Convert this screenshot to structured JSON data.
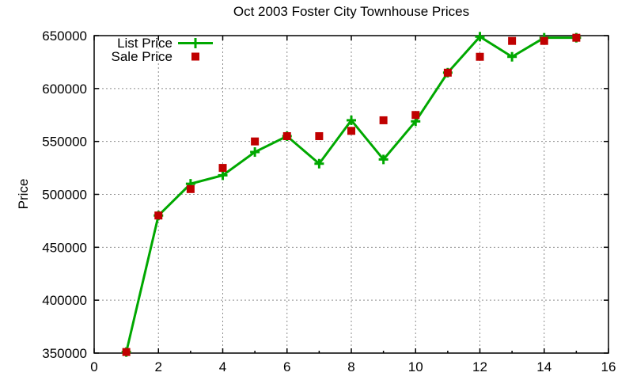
{
  "title": "Oct 2003 Foster City Townhouse Prices",
  "y_axis_label": "Price",
  "colors": {
    "background": "#ffffff",
    "axis": "#000000",
    "grid": "#8c8c8c",
    "list_price": "#00a800",
    "sale_price": "#c00000"
  },
  "legend": {
    "position": "top-left-inside",
    "items": [
      "List Price",
      "Sale Price"
    ]
  },
  "chart_data": {
    "type": "line",
    "title": "Oct 2003 Foster City Townhouse Prices",
    "xlabel": "",
    "ylabel": "Price",
    "xlim": [
      0,
      16
    ],
    "ylim": [
      350000,
      650000
    ],
    "x_tick_labels": [
      0,
      2,
      4,
      6,
      8,
      10,
      12,
      14,
      16
    ],
    "x_minor_tick_step": 1,
    "y_ticks": [
      350000,
      400000,
      450000,
      500000,
      550000,
      600000,
      650000
    ],
    "grid": "dotted gray at every labeled tick",
    "legend_position": "top-left-inside",
    "x": [
      1,
      2,
      3,
      4,
      5,
      6,
      7,
      8,
      9,
      10,
      11,
      12,
      13,
      14,
      15
    ],
    "series": [
      {
        "name": "List Price",
        "style": "line-with-plus-markers",
        "color": "#00a800",
        "values": [
          351000,
          480000,
          510000,
          518000,
          540000,
          555000,
          529000,
          570000,
          533000,
          569000,
          615000,
          649000,
          630000,
          648000,
          648000
        ]
      },
      {
        "name": "Sale Price",
        "style": "filled-squares-no-line",
        "color": "#c00000",
        "values": [
          351000,
          480000,
          505000,
          525000,
          550000,
          555000,
          555000,
          560000,
          570000,
          575000,
          615000,
          630000,
          645000,
          645000,
          648000
        ]
      }
    ]
  }
}
